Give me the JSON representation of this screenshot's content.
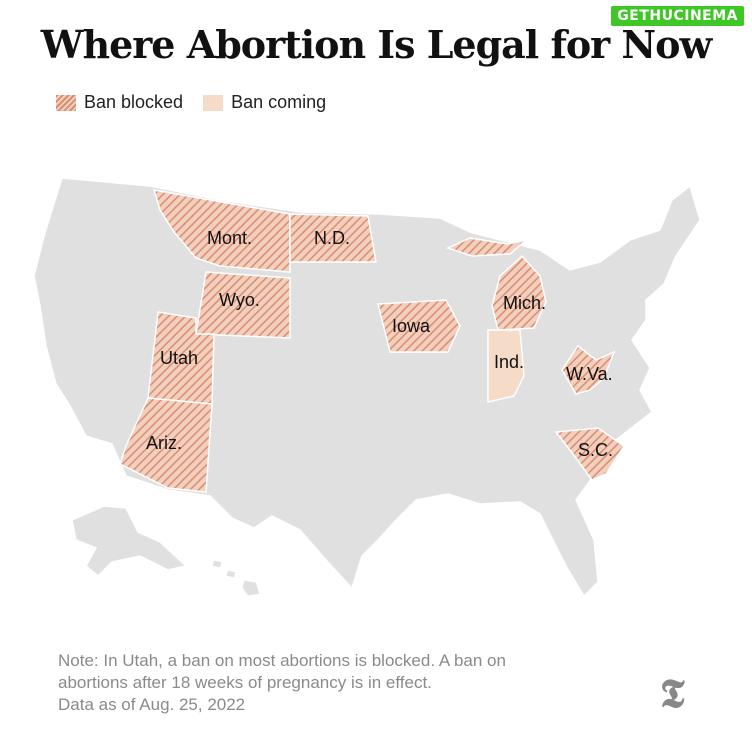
{
  "watermark": "GETHUCINEMA",
  "title": "Where Abortion Is Legal for Now",
  "legend": {
    "blocked_label": "Ban blocked",
    "coming_label": "Ban coming"
  },
  "colors": {
    "land": "#e0e0e0",
    "border": "#ffffff",
    "blocked_stripe": "#d98e70",
    "blocked_bg": "#f2cfbe",
    "coming": "#f4dcc8"
  },
  "states": [
    {
      "label": "Mont.",
      "status": "ban-blocked"
    },
    {
      "label": "N.D.",
      "status": "ban-blocked"
    },
    {
      "label": "Wyo.",
      "status": "ban-blocked"
    },
    {
      "label": "Utah",
      "status": "ban-blocked"
    },
    {
      "label": "Ariz.",
      "status": "ban-blocked"
    },
    {
      "label": "Iowa",
      "status": "ban-blocked"
    },
    {
      "label": "Mich.",
      "status": "ban-blocked"
    },
    {
      "label": "Ind.",
      "status": "ban-coming"
    },
    {
      "label": "W.Va.",
      "status": "ban-blocked"
    },
    {
      "label": "S.C.",
      "status": "ban-blocked"
    }
  ],
  "note": {
    "line1": "Note: In Utah, a ban on most abortions is blocked. A ban on",
    "line2": "abortions after 18 weeks of pregnancy is in effect.",
    "line3": "Data as of Aug. 25, 2022"
  },
  "logo": "𝕿"
}
